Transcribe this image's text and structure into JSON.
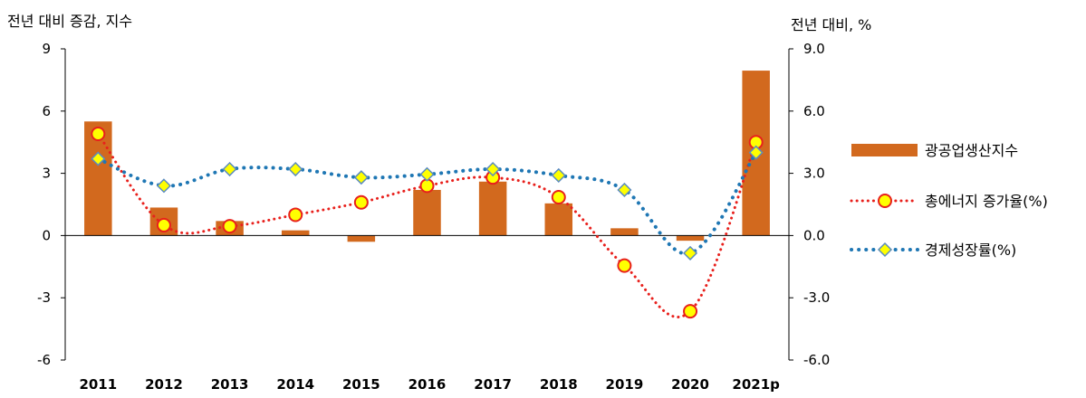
{
  "chart_data": {
    "type": "bar+line",
    "categories": [
      "2011",
      "2012",
      "2013",
      "2014",
      "2015",
      "2016",
      "2017",
      "2018",
      "2019",
      "2020",
      "2021p"
    ],
    "left_axis": {
      "label": "전년 대비 증감, 지수",
      "min": -6,
      "max": 9,
      "ticks": [
        "9",
        "6",
        "3",
        "0",
        "-3",
        "-6"
      ]
    },
    "right_axis": {
      "label": "전년 대비, %",
      "min": -6.0,
      "max": 9.0,
      "ticks": [
        "9.0",
        "6.0",
        "3.0",
        "0.0",
        "-3.0",
        "-6.0"
      ]
    },
    "series": [
      {
        "name": "광공업생산지수",
        "kind": "bar",
        "axis": "left",
        "color": "#D2691E",
        "values": [
          5.5,
          1.35,
          0.7,
          0.25,
          -0.3,
          2.2,
          2.6,
          1.55,
          0.35,
          -0.25,
          7.95
        ]
      },
      {
        "name": "총에너지 증가율(%)",
        "kind": "line-dotted",
        "axis": "right",
        "color": "#E8201C",
        "marker": "circle",
        "marker_fill": "#FFFF00",
        "values": [
          4.9,
          0.5,
          0.45,
          1.0,
          1.6,
          2.4,
          2.8,
          1.85,
          -1.45,
          -3.65,
          4.5
        ]
      },
      {
        "name": "경제성장률(%)",
        "kind": "line-dotted",
        "axis": "right",
        "color": "#1F77B4",
        "marker": "diamond",
        "marker_fill": "#FFFF00",
        "values": [
          3.7,
          2.4,
          3.2,
          3.2,
          2.8,
          2.95,
          3.2,
          2.9,
          2.2,
          -0.85,
          4.0
        ]
      }
    ],
    "legend": {
      "placement": "right"
    }
  }
}
